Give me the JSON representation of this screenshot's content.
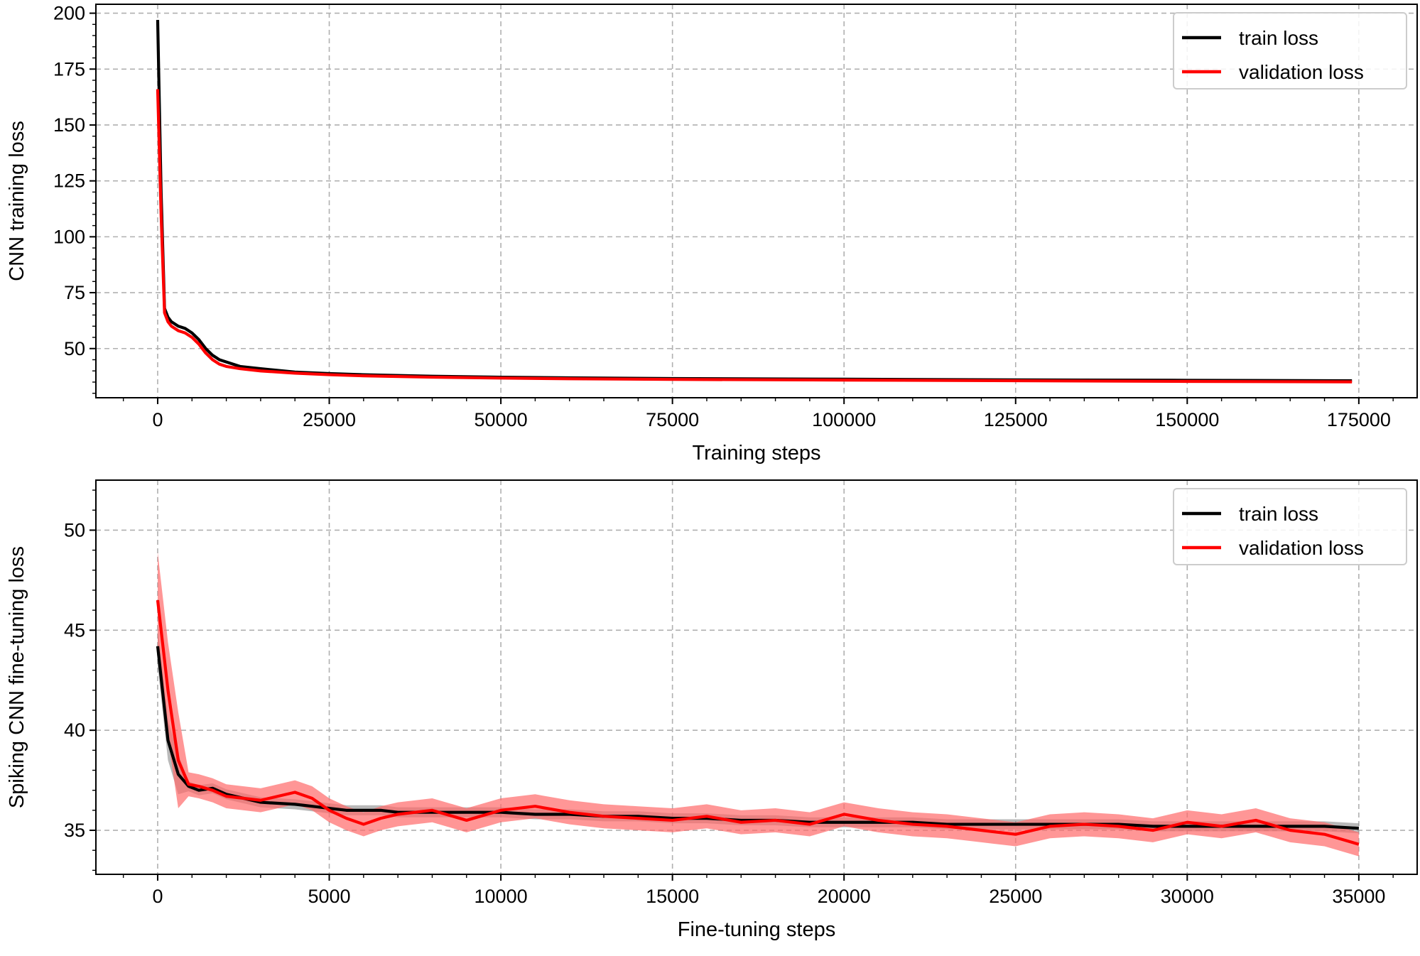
{
  "colors": {
    "train": "#000000",
    "validation": "#ff0000",
    "grid": "#b0b0b0",
    "train_band": "#808080",
    "validation_band": "#ff6a6a"
  },
  "chart_data": [
    {
      "type": "line",
      "xlabel": "Training steps",
      "ylabel": "CNN training loss",
      "xlim": [
        -9000,
        183500
      ],
      "ylim": [
        28,
        204
      ],
      "xticks": [
        0,
        25000,
        50000,
        75000,
        100000,
        125000,
        150000,
        175000
      ],
      "xtick_labels": [
        "0",
        "25000",
        "50000",
        "75000",
        "100000",
        "125000",
        "150000",
        "175000"
      ],
      "yticks": [
        50,
        75,
        100,
        125,
        150,
        175,
        200
      ],
      "ytick_labels": [
        "50",
        "75",
        "100",
        "125",
        "150",
        "175",
        "200"
      ],
      "grid": true,
      "legend": {
        "position": "top-right",
        "entries": [
          "train loss",
          "validation loss"
        ]
      },
      "series": [
        {
          "name": "train loss",
          "color": "#000000",
          "x": [
            0,
            500,
            1000,
            1500,
            2000,
            3000,
            4000,
            5000,
            6000,
            7000,
            8000,
            9000,
            10000,
            12000,
            15000,
            20000,
            25000,
            30000,
            40000,
            50000,
            60000,
            75000,
            100000,
            125000,
            150000,
            174000
          ],
          "y": [
            197,
            120,
            68,
            64,
            62,
            60,
            59,
            57,
            54,
            50,
            47,
            45,
            44,
            42,
            41,
            39.5,
            38.8,
            38.3,
            37.6,
            37.2,
            36.9,
            36.6,
            36.3,
            36.0,
            35.8,
            35.6
          ]
        },
        {
          "name": "validation loss",
          "color": "#ff0000",
          "x": [
            0,
            500,
            1000,
            1500,
            2000,
            3000,
            4000,
            5000,
            6000,
            7000,
            8000,
            9000,
            10000,
            12000,
            15000,
            20000,
            25000,
            30000,
            40000,
            50000,
            60000,
            75000,
            100000,
            125000,
            150000,
            174000
          ],
          "y": [
            166,
            110,
            66,
            62,
            60,
            58,
            57,
            55,
            52,
            48,
            45,
            43,
            42,
            41,
            40,
            39.0,
            38.3,
            37.8,
            37.2,
            36.8,
            36.5,
            36.2,
            35.9,
            35.6,
            35.3,
            35.1
          ]
        }
      ]
    },
    {
      "type": "line",
      "xlabel": "Fine-tuning steps",
      "ylabel": "Spiking CNN fine-tuning loss",
      "xlim": [
        -1800,
        36700
      ],
      "ylim": [
        32.8,
        52.5
      ],
      "xticks": [
        0,
        5000,
        10000,
        15000,
        20000,
        25000,
        30000,
        35000
      ],
      "xtick_labels": [
        "0",
        "5000",
        "10000",
        "15000",
        "20000",
        "25000",
        "30000",
        "35000"
      ],
      "yticks": [
        35,
        40,
        45,
        50
      ],
      "ytick_labels": [
        "35",
        "40",
        "45",
        "50"
      ],
      "grid": true,
      "legend": {
        "position": "top-right",
        "entries": [
          "train loss",
          "validation loss"
        ]
      },
      "series": [
        {
          "name": "train loss",
          "color": "#000000",
          "band": 0.25,
          "x": [
            0,
            300,
            600,
            900,
            1200,
            1600,
            2000,
            3000,
            4000,
            4500,
            5000,
            5500,
            6000,
            6500,
            7000,
            8000,
            9000,
            10000,
            11000,
            12000,
            13000,
            14000,
            15000,
            16000,
            17000,
            18000,
            19000,
            20000,
            21000,
            22000,
            23000,
            24000,
            25000,
            26000,
            27000,
            28000,
            29000,
            30000,
            31000,
            32000,
            33000,
            34000,
            35000
          ],
          "y": [
            44.2,
            39.5,
            37.8,
            37.2,
            37.0,
            37.1,
            36.8,
            36.4,
            36.3,
            36.2,
            36.1,
            36.0,
            36.0,
            36.0,
            35.9,
            35.9,
            35.9,
            35.9,
            35.8,
            35.8,
            35.7,
            35.7,
            35.6,
            35.6,
            35.5,
            35.5,
            35.4,
            35.4,
            35.4,
            35.4,
            35.3,
            35.3,
            35.3,
            35.3,
            35.3,
            35.3,
            35.2,
            35.2,
            35.2,
            35.2,
            35.2,
            35.2,
            35.1
          ]
        },
        {
          "name": "validation loss",
          "color": "#ff0000",
          "band": 0.6,
          "x": [
            0,
            300,
            600,
            900,
            1200,
            1600,
            2000,
            3000,
            4000,
            4500,
            5000,
            5500,
            6000,
            6500,
            7000,
            8000,
            9000,
            10000,
            11000,
            12000,
            13000,
            14000,
            15000,
            16000,
            17000,
            18000,
            19000,
            20000,
            21000,
            22000,
            23000,
            24000,
            25000,
            26000,
            27000,
            28000,
            29000,
            30000,
            31000,
            32000,
            33000,
            34000,
            35000
          ],
          "y": [
            46.5,
            42.0,
            38.5,
            37.3,
            37.2,
            37.0,
            36.7,
            36.5,
            36.9,
            36.6,
            36.0,
            35.6,
            35.3,
            35.6,
            35.8,
            36.0,
            35.5,
            36.0,
            36.2,
            35.9,
            35.7,
            35.6,
            35.5,
            35.7,
            35.4,
            35.5,
            35.3,
            35.8,
            35.5,
            35.3,
            35.2,
            35.0,
            34.8,
            35.2,
            35.3,
            35.2,
            35.0,
            35.4,
            35.2,
            35.5,
            35.0,
            34.8,
            34.3
          ]
        }
      ]
    }
  ]
}
